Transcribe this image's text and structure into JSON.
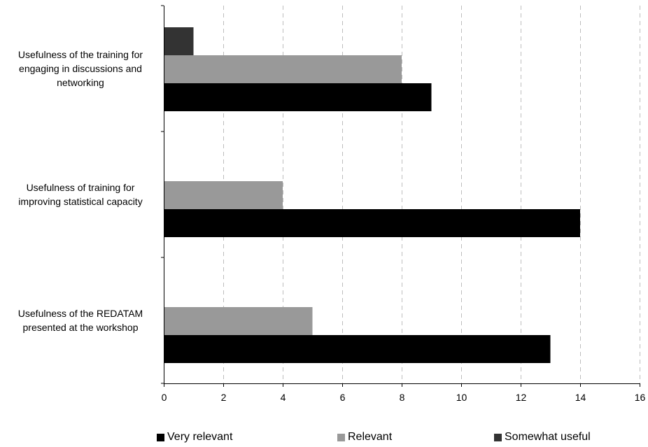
{
  "chart_data": {
    "type": "bar",
    "orientation": "horizontal",
    "categories": [
      [
        "Usefulness of the training for",
        "engaging in discussions and",
        "networking"
      ],
      [
        "Usefulness of training for",
        "improving statistical capacity"
      ],
      [
        "Usefulness of the REDATAM",
        "presented at the workshop"
      ]
    ],
    "series": [
      {
        "name": "Very relevant",
        "color": "#000000",
        "values": [
          9,
          14,
          13
        ]
      },
      {
        "name": "Relevant",
        "color": "#999999",
        "values": [
          8,
          4,
          5
        ]
      },
      {
        "name": "Somewhat useful",
        "color": "#333333",
        "values": [
          1,
          0,
          0
        ]
      }
    ],
    "xlim": [
      0,
      16
    ],
    "xticks": [
      "0",
      "2",
      "4",
      "6",
      "8",
      "10",
      "12",
      "14",
      "16"
    ],
    "grid": "vertical dashed",
    "legend_position": "bottom"
  }
}
